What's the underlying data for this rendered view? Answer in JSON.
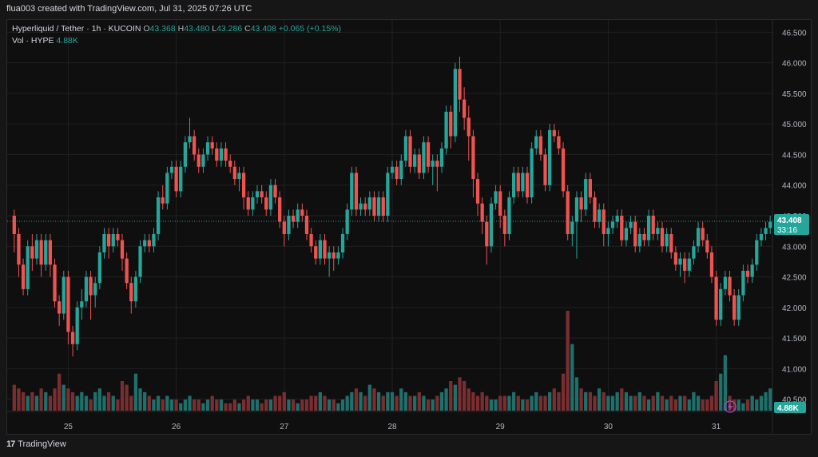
{
  "header": {
    "text": "flua003 created with TradingView.com, Jul 31, 2025 07:26 UTC"
  },
  "legend": {
    "symbol": "Hyperliquid / Tether · 1h · KUCOIN",
    "o_label": "O",
    "o_value": "43.368",
    "h_label": "H",
    "h_value": "43.480",
    "l_label": "L",
    "l_value": "43.286",
    "c_label": "C",
    "c_value": "43.408",
    "change": "+0.065 (+0.15%)",
    "vol_label": "Vol · HYPE",
    "vol_value": "4.88K"
  },
  "price_badge": {
    "price": "43.408",
    "countdown": "33:16"
  },
  "volume_badge": "4.88K",
  "footer": {
    "brand": "TradingView"
  },
  "colors": {
    "up": "#26a69a",
    "down": "#ef5350",
    "up_vol": "#1f6f6a",
    "down_vol": "#7a2e30",
    "bg": "#0f0f0f",
    "grid": "#202020"
  },
  "chart_data": {
    "type": "candlestick",
    "title": "",
    "ylim": [
      40.3,
      46.7
    ],
    "y_ticks": [
      "46.500",
      "46.000",
      "45.500",
      "45.000",
      "44.500",
      "44.000",
      "43.500",
      "43.000",
      "42.500",
      "42.000",
      "41.500",
      "41.000",
      "40.500"
    ],
    "x_ticks": [
      "25",
      "26",
      "27",
      "28",
      "29",
      "30",
      "31"
    ],
    "last_price": 43.408,
    "grid": true,
    "candles": [
      [
        43.5,
        43.2,
        43.6,
        42.9
      ],
      [
        43.2,
        42.7,
        43.3,
        42.5
      ],
      [
        42.7,
        42.3,
        42.8,
        42.2
      ],
      [
        42.3,
        43.0,
        43.1,
        42.2
      ],
      [
        43.0,
        42.8,
        43.2,
        42.6
      ],
      [
        42.8,
        43.1,
        43.2,
        42.7
      ],
      [
        43.1,
        42.7,
        43.2,
        42.5
      ],
      [
        42.7,
        43.1,
        43.2,
        42.6
      ],
      [
        43.1,
        42.7,
        43.2,
        42.5
      ],
      [
        42.7,
        42.1,
        42.8,
        42.0
      ],
      [
        42.1,
        41.9,
        42.2,
        41.7
      ],
      [
        41.9,
        42.5,
        42.6,
        41.8
      ],
      [
        42.5,
        41.6,
        42.6,
        41.4
      ],
      [
        41.6,
        41.4,
        41.7,
        41.2
      ],
      [
        41.4,
        42.0,
        42.1,
        41.3
      ],
      [
        42.0,
        42.1,
        42.3,
        41.8
      ],
      [
        42.1,
        42.5,
        42.6,
        42.0
      ],
      [
        42.5,
        42.2,
        42.6,
        41.8
      ],
      [
        42.2,
        42.4,
        42.5,
        42.0
      ],
      [
        42.4,
        42.9,
        43.0,
        42.3
      ],
      [
        42.9,
        43.2,
        43.3,
        42.8
      ],
      [
        43.2,
        43.0,
        43.3,
        42.8
      ],
      [
        43.0,
        43.2,
        43.3,
        42.9
      ],
      [
        43.2,
        43.1,
        43.3,
        43.0
      ],
      [
        43.1,
        42.8,
        43.2,
        42.6
      ],
      [
        42.8,
        42.4,
        42.9,
        42.3
      ],
      [
        42.4,
        42.1,
        42.5,
        41.9
      ],
      [
        42.1,
        42.5,
        42.6,
        42.0
      ],
      [
        42.5,
        43.0,
        43.1,
        42.4
      ],
      [
        43.0,
        43.1,
        43.2,
        42.9
      ],
      [
        43.1,
        43.0,
        43.2,
        42.9
      ],
      [
        43.0,
        43.2,
        43.3,
        42.9
      ],
      [
        43.2,
        43.8,
        43.9,
        43.1
      ],
      [
        43.8,
        43.7,
        44.0,
        43.6
      ],
      [
        43.7,
        44.2,
        44.3,
        43.6
      ],
      [
        44.2,
        44.3,
        44.4,
        44.1
      ],
      [
        44.3,
        43.9,
        44.4,
        43.8
      ],
      [
        43.9,
        44.3,
        44.4,
        43.8
      ],
      [
        44.3,
        44.7,
        44.8,
        44.2
      ],
      [
        44.7,
        44.8,
        45.1,
        44.6
      ],
      [
        44.8,
        44.5,
        44.9,
        44.4
      ],
      [
        44.5,
        44.3,
        44.6,
        44.2
      ],
      [
        44.3,
        44.5,
        44.6,
        44.2
      ],
      [
        44.5,
        44.7,
        44.8,
        44.4
      ],
      [
        44.7,
        44.6,
        44.8,
        44.5
      ],
      [
        44.6,
        44.4,
        44.7,
        44.3
      ],
      [
        44.4,
        44.6,
        44.7,
        44.3
      ],
      [
        44.6,
        44.4,
        44.7,
        44.3
      ],
      [
        44.4,
        44.3,
        44.5,
        44.2
      ],
      [
        44.3,
        44.1,
        44.4,
        44.0
      ],
      [
        44.1,
        44.2,
        44.3,
        43.9
      ],
      [
        44.2,
        43.8,
        44.3,
        43.6
      ],
      [
        43.8,
        43.6,
        43.9,
        43.5
      ],
      [
        43.6,
        43.8,
        43.9,
        43.5
      ],
      [
        43.8,
        43.9,
        44.0,
        43.7
      ],
      [
        43.9,
        43.8,
        44.0,
        43.7
      ],
      [
        43.8,
        43.6,
        43.9,
        43.5
      ],
      [
        43.6,
        44.0,
        44.1,
        43.5
      ],
      [
        44.0,
        43.8,
        44.1,
        43.7
      ],
      [
        43.8,
        43.4,
        43.9,
        43.3
      ],
      [
        43.4,
        43.2,
        43.5,
        43.0
      ],
      [
        43.2,
        43.5,
        43.6,
        43.1
      ],
      [
        43.5,
        43.4,
        43.6,
        43.3
      ],
      [
        43.4,
        43.6,
        43.7,
        43.3
      ],
      [
        43.6,
        43.5,
        43.7,
        43.4
      ],
      [
        43.5,
        43.2,
        43.6,
        43.1
      ],
      [
        43.2,
        43.0,
        43.3,
        42.9
      ],
      [
        43.0,
        42.8,
        43.1,
        42.7
      ],
      [
        42.8,
        43.1,
        43.2,
        42.7
      ],
      [
        43.1,
        42.8,
        43.2,
        42.7
      ],
      [
        42.8,
        42.9,
        43.0,
        42.5
      ],
      [
        42.9,
        42.8,
        43.0,
        42.6
      ],
      [
        42.8,
        42.9,
        43.0,
        42.7
      ],
      [
        42.9,
        43.2,
        43.3,
        42.8
      ],
      [
        43.2,
        43.6,
        43.7,
        43.1
      ],
      [
        43.6,
        44.2,
        44.3,
        43.5
      ],
      [
        44.2,
        43.6,
        44.3,
        43.5
      ],
      [
        43.6,
        43.7,
        43.8,
        43.5
      ],
      [
        43.7,
        43.6,
        43.8,
        43.5
      ],
      [
        43.6,
        43.8,
        43.9,
        43.5
      ],
      [
        43.8,
        43.5,
        43.9,
        43.4
      ],
      [
        43.5,
        43.8,
        43.9,
        43.4
      ],
      [
        43.8,
        43.5,
        43.9,
        43.4
      ],
      [
        43.5,
        44.2,
        44.3,
        43.4
      ],
      [
        44.2,
        44.3,
        44.4,
        44.1
      ],
      [
        44.3,
        44.1,
        44.4,
        44.0
      ],
      [
        44.1,
        44.4,
        44.5,
        44.0
      ],
      [
        44.4,
        44.8,
        44.9,
        44.3
      ],
      [
        44.8,
        44.3,
        44.9,
        44.2
      ],
      [
        44.3,
        44.5,
        44.6,
        44.2
      ],
      [
        44.5,
        44.2,
        44.6,
        44.1
      ],
      [
        44.2,
        44.7,
        44.8,
        44.1
      ],
      [
        44.7,
        44.3,
        44.8,
        44.2
      ],
      [
        44.3,
        44.4,
        44.5,
        44.0
      ],
      [
        44.4,
        44.3,
        44.5,
        43.9
      ],
      [
        44.3,
        44.6,
        44.7,
        44.2
      ],
      [
        44.6,
        45.2,
        45.3,
        44.5
      ],
      [
        45.2,
        44.8,
        45.3,
        44.6
      ],
      [
        44.8,
        45.9,
        46.0,
        44.7
      ],
      [
        45.9,
        45.4,
        46.1,
        45.2
      ],
      [
        45.4,
        45.1,
        45.6,
        44.9
      ],
      [
        45.1,
        44.8,
        45.3,
        44.4
      ],
      [
        44.8,
        44.1,
        44.9,
        43.8
      ],
      [
        44.1,
        43.7,
        44.2,
        43.5
      ],
      [
        43.7,
        43.4,
        43.8,
        43.2
      ],
      [
        43.4,
        43.0,
        43.5,
        42.7
      ],
      [
        43.0,
        43.7,
        43.8,
        42.9
      ],
      [
        43.7,
        43.9,
        44.0,
        43.6
      ],
      [
        43.9,
        43.5,
        44.0,
        43.3
      ],
      [
        43.5,
        43.2,
        43.6,
        43.0
      ],
      [
        43.2,
        43.8,
        43.9,
        43.1
      ],
      [
        43.8,
        44.2,
        44.3,
        43.7
      ],
      [
        44.2,
        43.9,
        44.3,
        43.8
      ],
      [
        43.9,
        44.2,
        44.3,
        43.8
      ],
      [
        44.2,
        43.8,
        44.3,
        43.7
      ],
      [
        43.8,
        44.6,
        44.7,
        43.7
      ],
      [
        44.6,
        44.8,
        44.9,
        44.5
      ],
      [
        44.8,
        44.5,
        44.9,
        44.4
      ],
      [
        44.5,
        44.0,
        44.6,
        43.9
      ],
      [
        44.0,
        44.9,
        45.0,
        43.9
      ],
      [
        44.9,
        44.8,
        45.0,
        44.7
      ],
      [
        44.8,
        44.6,
        44.9,
        44.5
      ],
      [
        44.6,
        43.9,
        44.7,
        43.8
      ],
      [
        43.9,
        43.2,
        44.0,
        43.1
      ],
      [
        43.2,
        43.4,
        43.5,
        43.0
      ],
      [
        43.4,
        43.8,
        43.9,
        42.8
      ],
      [
        43.8,
        43.6,
        43.9,
        43.4
      ],
      [
        43.6,
        44.1,
        44.2,
        43.5
      ],
      [
        44.1,
        43.8,
        44.2,
        43.7
      ],
      [
        43.8,
        43.4,
        43.9,
        43.3
      ],
      [
        43.4,
        43.6,
        43.7,
        43.3
      ],
      [
        43.6,
        43.2,
        43.7,
        43.0
      ],
      [
        43.2,
        43.3,
        43.4,
        43.0
      ],
      [
        43.3,
        43.4,
        43.5,
        43.2
      ],
      [
        43.4,
        43.5,
        43.6,
        43.3
      ],
      [
        43.5,
        43.1,
        43.6,
        43.0
      ],
      [
        43.1,
        43.3,
        43.4,
        43.0
      ],
      [
        43.3,
        43.4,
        43.5,
        43.2
      ],
      [
        43.4,
        43.0,
        43.5,
        42.9
      ],
      [
        43.0,
        43.2,
        43.3,
        42.9
      ],
      [
        43.2,
        43.1,
        43.3,
        43.0
      ],
      [
        43.1,
        43.5,
        43.6,
        43.0
      ],
      [
        43.5,
        43.2,
        43.6,
        43.1
      ],
      [
        43.2,
        43.3,
        43.4,
        43.1
      ],
      [
        43.3,
        43.0,
        43.4,
        42.9
      ],
      [
        43.0,
        43.2,
        43.3,
        42.9
      ],
      [
        43.2,
        42.9,
        43.3,
        42.8
      ],
      [
        42.9,
        42.7,
        43.0,
        42.6
      ],
      [
        42.7,
        42.8,
        42.9,
        42.5
      ],
      [
        42.8,
        42.6,
        42.9,
        42.4
      ],
      [
        42.6,
        42.8,
        42.9,
        42.5
      ],
      [
        42.8,
        43.0,
        43.1,
        42.7
      ],
      [
        43.0,
        43.3,
        43.4,
        42.9
      ],
      [
        43.3,
        43.1,
        43.4,
        43.0
      ],
      [
        43.1,
        42.9,
        43.2,
        42.8
      ],
      [
        42.9,
        42.5,
        43.0,
        42.4
      ],
      [
        42.5,
        41.8,
        42.6,
        41.7
      ],
      [
        41.8,
        42.3,
        42.4,
        41.7
      ],
      [
        42.3,
        42.5,
        42.6,
        42.2
      ],
      [
        42.5,
        42.2,
        42.6,
        42.1
      ],
      [
        42.2,
        41.8,
        42.3,
        41.7
      ],
      [
        41.8,
        42.2,
        42.3,
        41.7
      ],
      [
        42.2,
        42.6,
        42.7,
        42.1
      ],
      [
        42.6,
        42.5,
        42.7,
        42.4
      ],
      [
        42.5,
        42.7,
        42.8,
        42.4
      ],
      [
        42.7,
        43.1,
        43.2,
        42.6
      ],
      [
        43.1,
        43.2,
        43.3,
        43.0
      ],
      [
        43.2,
        43.3,
        43.4,
        43.1
      ],
      [
        43.3,
        43.4,
        43.5,
        43.2
      ]
    ],
    "volume": [
      0.7,
      0.6,
      0.5,
      0.4,
      0.5,
      0.4,
      0.6,
      0.5,
      0.4,
      0.6,
      1.0,
      0.7,
      0.6,
      0.5,
      0.4,
      0.5,
      0.4,
      0.3,
      0.5,
      0.6,
      0.4,
      0.5,
      0.4,
      0.3,
      0.8,
      0.7,
      0.4,
      1.0,
      0.6,
      0.5,
      0.4,
      0.3,
      0.4,
      0.3,
      0.4,
      0.3,
      0.3,
      0.2,
      0.3,
      0.4,
      0.3,
      0.3,
      0.2,
      0.3,
      0.4,
      0.3,
      0.3,
      0.2,
      0.2,
      0.3,
      0.2,
      0.3,
      0.4,
      0.3,
      0.3,
      0.2,
      0.3,
      0.3,
      0.4,
      0.4,
      0.5,
      0.3,
      0.3,
      0.2,
      0.3,
      0.3,
      0.4,
      0.4,
      0.5,
      0.4,
      0.3,
      0.3,
      0.2,
      0.3,
      0.4,
      0.5,
      0.6,
      0.5,
      0.4,
      0.7,
      0.6,
      0.5,
      0.4,
      0.5,
      0.5,
      0.4,
      0.6,
      0.5,
      0.4,
      0.4,
      0.5,
      0.4,
      0.3,
      0.3,
      0.4,
      0.5,
      0.6,
      0.8,
      0.7,
      0.9,
      0.8,
      0.6,
      0.5,
      0.4,
      0.5,
      0.4,
      0.3,
      0.3,
      0.4,
      0.4,
      0.4,
      0.5,
      0.4,
      0.3,
      0.3,
      0.4,
      0.5,
      0.4,
      0.4,
      0.5,
      0.6,
      0.5,
      1.0,
      2.7,
      1.8,
      0.9,
      0.6,
      0.5,
      0.5,
      0.4,
      0.6,
      0.5,
      0.4,
      0.4,
      0.5,
      0.6,
      0.5,
      0.4,
      0.4,
      0.5,
      0.4,
      0.3,
      0.4,
      0.5,
      0.4,
      0.3,
      0.4,
      0.3,
      0.4,
      0.4,
      0.3,
      0.5,
      0.4,
      0.3,
      0.3,
      0.4,
      0.8,
      1.0,
      1.5,
      0.4,
      0.3,
      0.3,
      0.2,
      0.3,
      0.4,
      0.3,
      0.4,
      0.5,
      0.6
    ]
  }
}
